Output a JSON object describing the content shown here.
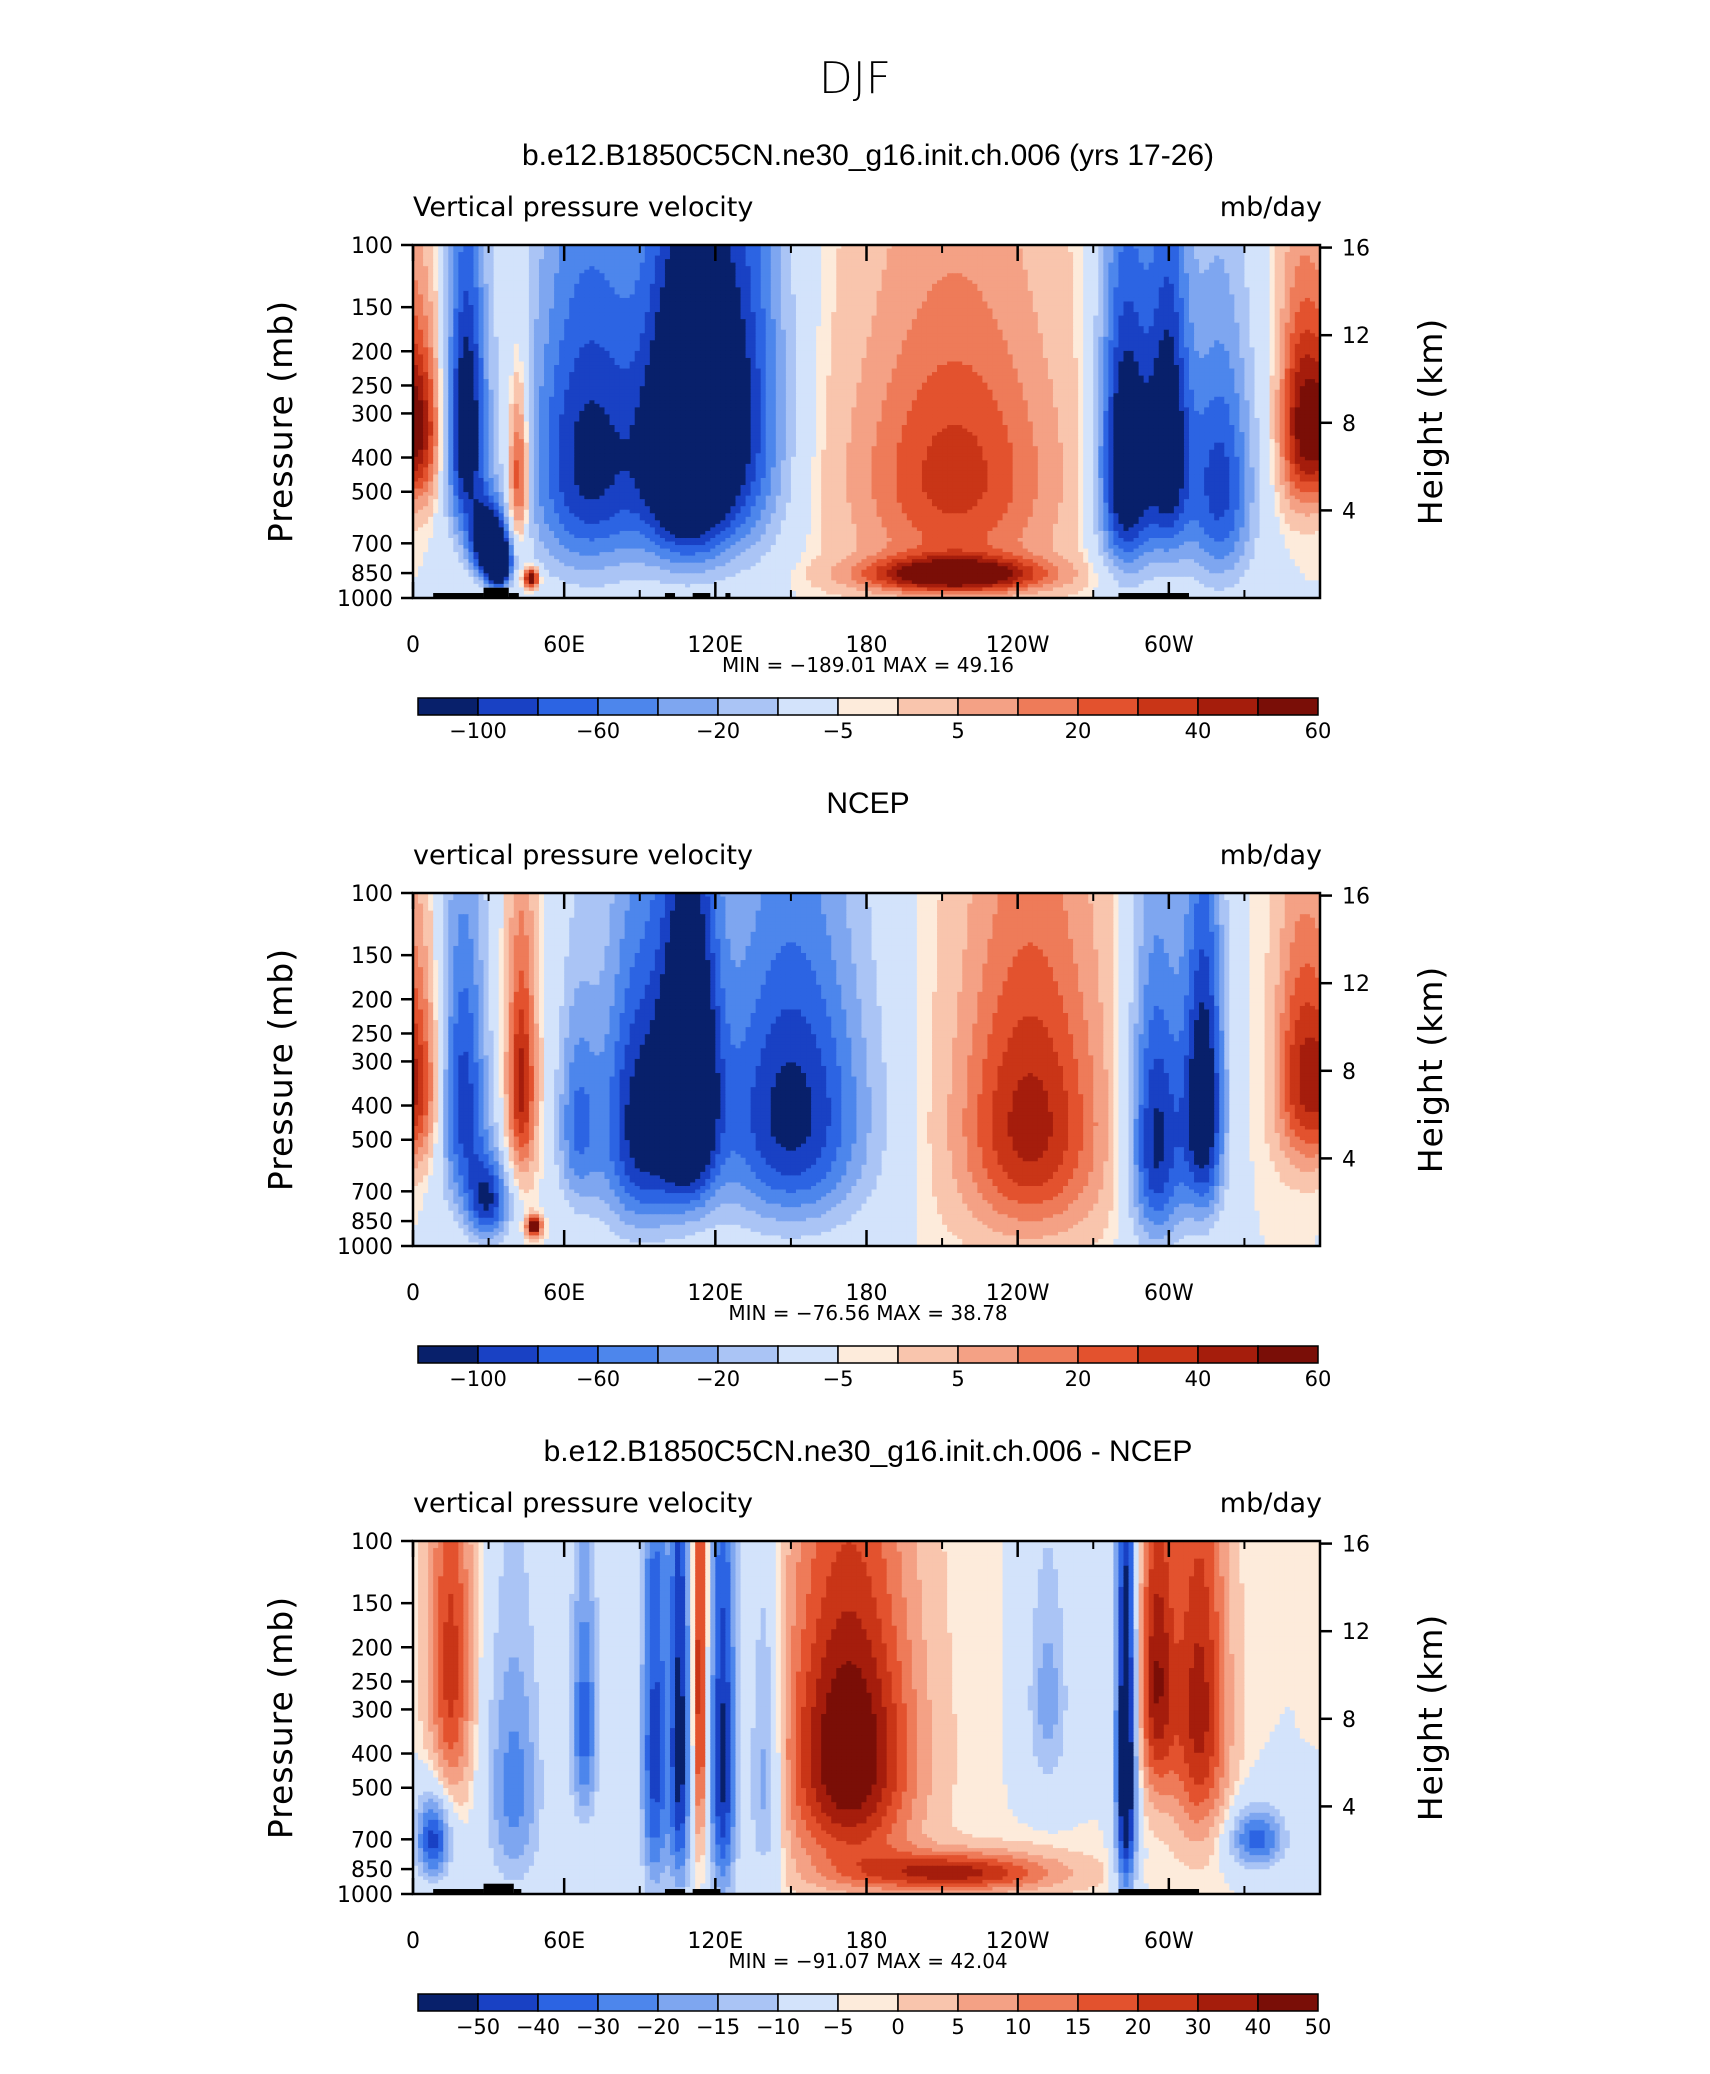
{
  "figure_title": "DJF",
  "colors": {
    "scale": [
      "#08206b",
      "#1941c4",
      "#2c64e3",
      "#4d86ec",
      "#7ea6f0",
      "#aac4f5",
      "#d3e3fb",
      "#fdebdb",
      "#f9c5ad",
      "#f4a185",
      "#ee7b59",
      "#e3522e",
      "#c93517",
      "#a51d0c",
      "#7a0e07"
    ]
  },
  "chart_data": [
    {
      "type": "heatmap",
      "title": "b.e12.B1850C5CN.ne30_g16.init.ch.006 (yrs 17-26)",
      "left_label": "Vertical pressure velocity",
      "right_label": "mb/day",
      "ylabel": "Pressure (mb)",
      "ylabel_right": "Height (km)",
      "x_ticks": [
        "0",
        "60E",
        "120E",
        "180",
        "120W",
        "60W"
      ],
      "x_tick_values": [
        0,
        60,
        120,
        180,
        240,
        300
      ],
      "y_ticks": [
        "100",
        "150",
        "200",
        "250",
        "300",
        "400",
        "500",
        "700",
        "850",
        "1000"
      ],
      "y_tick_values": [
        100,
        150,
        200,
        250,
        300,
        400,
        500,
        700,
        850,
        1000
      ],
      "height_ticks": [
        "16",
        "12",
        "8",
        "4"
      ],
      "height_tick_values": [
        16,
        12,
        8,
        4
      ],
      "xlim": [
        0,
        360
      ],
      "ylim": [
        1000,
        100
      ],
      "min_max": "MIN = −189.01   MAX =   49.16",
      "colorbar_labels": [
        "−100",
        "−60",
        "−20",
        "−5",
        "5",
        "20",
        "40",
        "60"
      ],
      "colorbar_label_pos": [
        1,
        3,
        5,
        7,
        9,
        11,
        13,
        15
      ],
      "terrain": [
        [
          8,
          28,
          968,
          1000
        ],
        [
          28,
          38,
          935,
          1000
        ],
        [
          38,
          42,
          968,
          1000
        ],
        [
          100,
          104,
          968,
          1000
        ],
        [
          111,
          118,
          968,
          1000
        ],
        [
          124,
          126,
          968,
          1000
        ],
        [
          280,
          308,
          968,
          1000
        ]
      ],
      "centers": [
        {
          "lon": 3,
          "p": 330,
          "v": 6,
          "lw": 6,
          "pw": 130
        },
        {
          "lon": 21,
          "p": 330,
          "v": -8,
          "lw": 6,
          "pw": 220
        },
        {
          "lon": 30,
          "p": 700,
          "v": -9,
          "lw": 5,
          "pw": 120
        },
        {
          "lon": 34,
          "p": 800,
          "v": -12,
          "lw": 3,
          "pw": 80
        },
        {
          "lon": 42,
          "p": 450,
          "v": 6,
          "lw": 3,
          "pw": 160
        },
        {
          "lon": 47,
          "p": 880,
          "v": 9,
          "lw": 2,
          "pw": 40
        },
        {
          "lon": 70,
          "p": 400,
          "v": -7,
          "lw": 18,
          "pw": 300
        },
        {
          "lon": 108,
          "p": 380,
          "v": -10,
          "lw": 12,
          "pw": 260
        },
        {
          "lon": 130,
          "p": 300,
          "v": -6,
          "lw": 14,
          "pw": 300
        },
        {
          "lon": 215,
          "p": 450,
          "v": 5,
          "lw": 28,
          "pw": 280
        },
        {
          "lon": 215,
          "p": 860,
          "v": 8,
          "lw": 25,
          "pw": 70
        },
        {
          "lon": 283,
          "p": 420,
          "v": -9,
          "lw": 8,
          "pw": 280
        },
        {
          "lon": 300,
          "p": 360,
          "v": -7,
          "lw": 6,
          "pw": 260
        },
        {
          "lon": 320,
          "p": 480,
          "v": -6,
          "lw": 10,
          "pw": 280
        },
        {
          "lon": 352,
          "p": 320,
          "v": 6,
          "lw": 6,
          "pw": 150
        }
      ]
    },
    {
      "type": "heatmap",
      "title": "NCEP",
      "left_label": "vertical pressure velocity",
      "right_label": "mb/day",
      "ylabel": "Pressure (mb)",
      "ylabel_right": "Height (km)",
      "x_ticks": [
        "0",
        "60E",
        "120E",
        "180",
        "120W",
        "60W"
      ],
      "x_tick_values": [
        0,
        60,
        120,
        180,
        240,
        300
      ],
      "y_ticks": [
        "100",
        "150",
        "200",
        "250",
        "300",
        "400",
        "500",
        "700",
        "850",
        "1000"
      ],
      "y_tick_values": [
        100,
        150,
        200,
        250,
        300,
        400,
        500,
        700,
        850,
        1000
      ],
      "height_ticks": [
        "16",
        "12",
        "8",
        "4"
      ],
      "height_tick_values": [
        16,
        12,
        8,
        4
      ],
      "xlim": [
        0,
        360
      ],
      "ylim": [
        1000,
        100
      ],
      "min_max": "MIN = −76.56   MAX =   38.78",
      "colorbar_labels": [
        "−100",
        "−60",
        "−20",
        "−5",
        "5",
        "20",
        "40",
        "60"
      ],
      "colorbar_label_pos": [
        1,
        3,
        5,
        7,
        9,
        11,
        13,
        15
      ],
      "terrain": [],
      "centers": [
        {
          "lon": 3,
          "p": 350,
          "v": 4,
          "lw": 6,
          "pw": 150
        },
        {
          "lon": 20,
          "p": 380,
          "v": -6,
          "lw": 7,
          "pw": 260
        },
        {
          "lon": 30,
          "p": 750,
          "v": -6,
          "lw": 6,
          "pw": 150
        },
        {
          "lon": 43,
          "p": 350,
          "v": 6,
          "lw": 4,
          "pw": 180
        },
        {
          "lon": 48,
          "p": 880,
          "v": 9,
          "lw": 2,
          "pw": 40
        },
        {
          "lon": 65,
          "p": 450,
          "v": -4,
          "lw": 6,
          "pw": 220
        },
        {
          "lon": 90,
          "p": 450,
          "v": -7,
          "lw": 12,
          "pw": 300
        },
        {
          "lon": 110,
          "p": 350,
          "v": -9,
          "lw": 8,
          "pw": 260
        },
        {
          "lon": 150,
          "p": 420,
          "v": -7,
          "lw": 22,
          "pw": 300
        },
        {
          "lon": 245,
          "p": 450,
          "v": 6,
          "lw": 20,
          "pw": 300
        },
        {
          "lon": 295,
          "p": 500,
          "v": -7,
          "lw": 8,
          "pw": 320
        },
        {
          "lon": 314,
          "p": 400,
          "v": -8,
          "lw": 6,
          "pw": 280
        },
        {
          "lon": 352,
          "p": 330,
          "v": 5,
          "lw": 7,
          "pw": 170
        }
      ]
    },
    {
      "type": "heatmap",
      "title": "b.e12.B1850C5CN.ne30_g16.init.ch.006 - NCEP",
      "left_label": "vertical pressure velocity",
      "right_label": "mb/day",
      "ylabel": "Pressure (mb)",
      "ylabel_right": "Height (km)",
      "x_ticks": [
        "0",
        "60E",
        "120E",
        "180",
        "120W",
        "60W"
      ],
      "x_tick_values": [
        0,
        60,
        120,
        180,
        240,
        300
      ],
      "y_ticks": [
        "100",
        "150",
        "200",
        "250",
        "300",
        "400",
        "500",
        "700",
        "850",
        "1000"
      ],
      "y_tick_values": [
        100,
        150,
        200,
        250,
        300,
        400,
        500,
        700,
        850,
        1000
      ],
      "height_ticks": [
        "16",
        "12",
        "8",
        "4"
      ],
      "height_tick_values": [
        16,
        12,
        8,
        4
      ],
      "xlim": [
        0,
        360
      ],
      "ylim": [
        1000,
        100
      ],
      "min_max": "MIN = −91.07   MAX =   42.04",
      "colorbar_labels": [
        "−50",
        "−40",
        "−30",
        "−20",
        "−15",
        "−10",
        "−5",
        "0",
        "5",
        "10",
        "15",
        "20",
        "30",
        "40",
        "50"
      ],
      "colorbar_label_pos": [
        1,
        2,
        3,
        4,
        5,
        6,
        7,
        8,
        9,
        10,
        11,
        12,
        13,
        14,
        15
      ],
      "terrain": [
        [
          8,
          28,
          968,
          1000
        ],
        [
          28,
          40,
          935,
          1000
        ],
        [
          40,
          43,
          968,
          1000
        ],
        [
          100,
          108,
          968,
          1000
        ],
        [
          111,
          122,
          968,
          1000
        ],
        [
          280,
          312,
          968,
          1000
        ]
      ],
      "centers": [
        {
          "lon": 8,
          "p": 700,
          "v": -6,
          "lw": 5,
          "pw": 140
        },
        {
          "lon": 15,
          "p": 230,
          "v": 5,
          "lw": 6,
          "pw": 200
        },
        {
          "lon": 40,
          "p": 500,
          "v": -4,
          "lw": 8,
          "pw": 300
        },
        {
          "lon": 68,
          "p": 330,
          "v": -5,
          "lw": 4,
          "pw": 200
        },
        {
          "lon": 96,
          "p": 400,
          "v": -6,
          "lw": 4,
          "pw": 400
        },
        {
          "lon": 106,
          "p": 380,
          "v": -7,
          "lw": 3,
          "pw": 400
        },
        {
          "lon": 114,
          "p": 260,
          "v": 6,
          "lw": 2,
          "pw": 300
        },
        {
          "lon": 123,
          "p": 420,
          "v": -7,
          "lw": 4,
          "pw": 400
        },
        {
          "lon": 140,
          "p": 450,
          "v": -4,
          "lw": 5,
          "pw": 300
        },
        {
          "lon": 173,
          "p": 400,
          "v": 8,
          "lw": 18,
          "pw": 280
        },
        {
          "lon": 215,
          "p": 870,
          "v": 6,
          "lw": 28,
          "pw": 80
        },
        {
          "lon": 252,
          "p": 280,
          "v": -3,
          "lw": 6,
          "pw": 150
        },
        {
          "lon": 283,
          "p": 420,
          "v": -9,
          "lw": 3,
          "pw": 400
        },
        {
          "lon": 295,
          "p": 250,
          "v": 6,
          "lw": 5,
          "pw": 180
        },
        {
          "lon": 312,
          "p": 300,
          "v": 6,
          "lw": 8,
          "pw": 250
        },
        {
          "lon": 335,
          "p": 700,
          "v": -5,
          "lw": 8,
          "pw": 100
        }
      ]
    }
  ]
}
